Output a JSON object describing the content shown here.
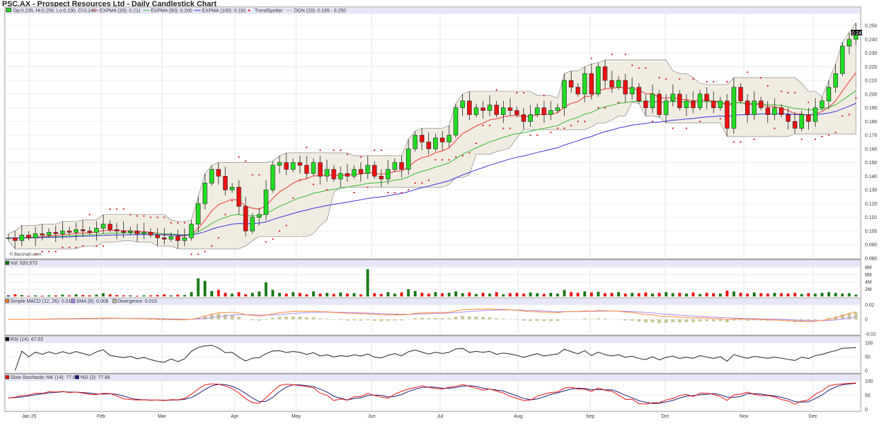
{
  "title": "PSC.AX - Prospect Resources Ltd - Daily Candlestick Chart",
  "watermark": "© Barchart.com",
  "price_legend": {
    "ohlc": "Op:0.235, Hi:0.250, Lo:0.230, Cl:0.245",
    "ema20": "EXPMA (20): 0.211",
    "ema50": "EXPMA (50): 0.200",
    "ema100": "EXPMA (100): 0.191",
    "trend": "TrendSpotter",
    "don": "DON (20): 0.165 - 0.250"
  },
  "last_price": "0.245",
  "vol_legend": "Vol: 520,573",
  "macd_legend": {
    "macd": "Simple MACD (12, 26): 0.018",
    "sma": "SMA (9): 0.008",
    "div": "Divergence: 0.010"
  },
  "rsi_legend": "RSI (14): 67.02",
  "stoch_legend": {
    "k": "Slow Stochastic %K (14): 77.62",
    "d": "%D (3): 77.86"
  },
  "colors": {
    "up": "#22dd22",
    "down": "#ee1111",
    "ema20": "#ee3333",
    "ema50": "#33bb33",
    "ema100": "#3333dd",
    "donchian": "#f1ece1",
    "legend_bg": "#e6e6f8",
    "macd": "#ff8833",
    "sma": "#aa88ee",
    "divergence": "#c8c89a",
    "vol_flat": "#1a1a7a",
    "vol_up": "#1a7a1a"
  },
  "chart_data": {
    "type": "candlestick",
    "x_tick_labels": [
      "Jan 25",
      "Feb",
      "Mar",
      "Apr",
      "May",
      "Jun",
      "Jul",
      "Aug",
      "Sep",
      "Oct",
      "Nov",
      "Dec"
    ],
    "price_axis": {
      "ylim": [
        0.08,
        0.25
      ],
      "ticks": [
        "0.250",
        "0.240",
        "0.230",
        "0.220",
        "0.210",
        "0.200",
        "0.190",
        "0.180",
        "0.170",
        "0.160",
        "0.150",
        "0.140",
        "0.130",
        "0.120",
        "0.110",
        "0.100",
        "0.090",
        "0.080"
      ]
    },
    "vol_axis": {
      "ticks": [
        "8M",
        "6M",
        "4M",
        "2M"
      ],
      "ylim": [
        0,
        8
      ]
    },
    "macd_axis": {
      "ticks": [
        "0.02",
        "0",
        "-0.02"
      ],
      "ylim": [
        -0.02,
        0.02
      ]
    },
    "rsi_axis": {
      "ticks": [
        "100",
        "50",
        "0"
      ]
    },
    "stoch_axis": {
      "ticks": [
        "100",
        "50",
        "0"
      ]
    },
    "closes": [
      0.095,
      0.093,
      0.097,
      0.095,
      0.098,
      0.097,
      0.099,
      0.098,
      0.1,
      0.099,
      0.101,
      0.1,
      0.099,
      0.102,
      0.105,
      0.101,
      0.1,
      0.099,
      0.1,
      0.098,
      0.099,
      0.097,
      0.095,
      0.094,
      0.096,
      0.093,
      0.095,
      0.105,
      0.12,
      0.135,
      0.145,
      0.14,
      0.13,
      0.132,
      0.118,
      0.1,
      0.11,
      0.112,
      0.13,
      0.148,
      0.15,
      0.145,
      0.15,
      0.148,
      0.142,
      0.15,
      0.14,
      0.145,
      0.138,
      0.142,
      0.14,
      0.145,
      0.142,
      0.148,
      0.14,
      0.138,
      0.145,
      0.15,
      0.145,
      0.16,
      0.17,
      0.165,
      0.16,
      0.168,
      0.165,
      0.17,
      0.19,
      0.195,
      0.185,
      0.19,
      0.188,
      0.192,
      0.185,
      0.19,
      0.188,
      0.185,
      0.18,
      0.185,
      0.19,
      0.185,
      0.188,
      0.19,
      0.21,
      0.205,
      0.2,
      0.215,
      0.2,
      0.22,
      0.21,
      0.205,
      0.21,
      0.2,
      0.205,
      0.195,
      0.19,
      0.2,
      0.185,
      0.195,
      0.2,
      0.19,
      0.195,
      0.19,
      0.2,
      0.195,
      0.19,
      0.195,
      0.175,
      0.205,
      0.195,
      0.185,
      0.195,
      0.19,
      0.185,
      0.19,
      0.185,
      0.18,
      0.175,
      0.185,
      0.18,
      0.19,
      0.195,
      0.205,
      0.215,
      0.235,
      0.24,
      0.245
    ],
    "volumes_millions": [
      0.3,
      0.6,
      0.4,
      0.2,
      0.3,
      0.2,
      0.3,
      0.3,
      0.5,
      0.3,
      0.6,
      0.4,
      0.3,
      0.5,
      0.9,
      0.6,
      0.4,
      0.3,
      0.3,
      0.2,
      0.3,
      0.3,
      0.4,
      0.6,
      0.3,
      0.5,
      0.4,
      1.2,
      5.0,
      4.3,
      1.5,
      1.8,
      1.0,
      0.8,
      1.2,
      0.6,
      1.0,
      1.4,
      3.9,
      1.8,
      1.0,
      0.8,
      1.2,
      1.0,
      0.6,
      1.4,
      0.8,
      1.0,
      0.7,
      1.1,
      0.8,
      0.9,
      0.6,
      7.5,
      0.9,
      0.7,
      1.2,
      0.8,
      1.1,
      2.0,
      1.5,
      1.0,
      0.8,
      1.2,
      0.9,
      1.0,
      1.4,
      0.9,
      1.1,
      0.7,
      1.0,
      0.8,
      1.2,
      0.6,
      0.9,
      1.0,
      0.8,
      1.1,
      0.9,
      0.7,
      1.0,
      0.8,
      1.8,
      1.2,
      1.0,
      1.4,
      1.1,
      1.3,
      0.9,
      1.0,
      1.2,
      0.8,
      1.0,
      0.9,
      1.1,
      0.8,
      1.0,
      1.2,
      0.9,
      1.0,
      0.8,
      1.1,
      0.7,
      1.0,
      0.9,
      0.8,
      1.6,
      1.4,
      1.0,
      0.8,
      1.1,
      0.9,
      0.8,
      1.0,
      0.9,
      0.8,
      1.0,
      0.7,
      0.9,
      0.8,
      1.0,
      1.2,
      1.0,
      0.8,
      0.9,
      0.5
    ]
  }
}
